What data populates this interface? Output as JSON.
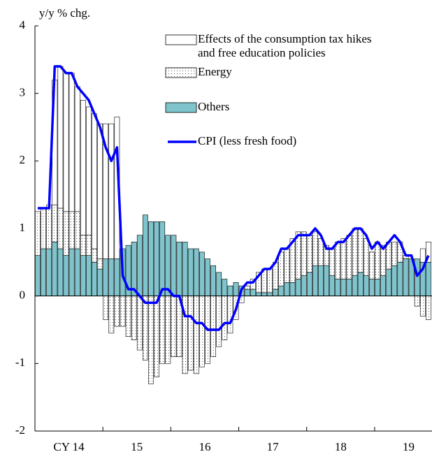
{
  "chart_data": {
    "type": "stacked-bar-line",
    "y_label": "y/y % chg.",
    "categories": [
      null,
      null,
      null,
      null,
      null,
      "CY 14",
      null,
      null,
      null,
      null,
      null,
      null,
      null,
      null,
      null,
      null,
      null,
      "15",
      null,
      null,
      null,
      null,
      null,
      null,
      null,
      null,
      null,
      null,
      null,
      "16",
      null,
      null,
      null,
      null,
      null,
      null,
      null,
      null,
      null,
      null,
      null,
      "17",
      null,
      null,
      null,
      null,
      null,
      null,
      null,
      null,
      null,
      null,
      null,
      "18",
      null,
      null,
      null,
      null,
      null,
      null,
      null,
      null,
      null,
      null,
      null,
      "19",
      null,
      null,
      null,
      null
    ],
    "series": [
      {
        "name": "Others",
        "kind": "bar",
        "color": "#7fc4cc",
        "values": [
          0.6,
          0.7,
          0.7,
          0.8,
          0.7,
          0.6,
          0.7,
          0.7,
          0.6,
          0.6,
          0.5,
          0.4,
          0.55,
          0.55,
          0.55,
          0.7,
          0.75,
          0.8,
          0.9,
          1.2,
          1.1,
          1.1,
          1.1,
          0.9,
          0.9,
          0.8,
          0.8,
          0.7,
          0.7,
          0.65,
          0.55,
          0.45,
          0.35,
          0.25,
          0.15,
          0.2,
          0.15,
          0.1,
          0.1,
          0.05,
          0.05,
          0.05,
          0.1,
          0.15,
          0.2,
          0.2,
          0.25,
          0.3,
          0.35,
          0.45,
          0.45,
          0.45,
          0.3,
          0.25,
          0.25,
          0.25,
          0.3,
          0.35,
          0.3,
          0.25,
          0.25,
          0.3,
          0.4,
          0.45,
          0.5,
          0.55,
          0.55,
          0.55,
          0.5,
          0.5
        ]
      },
      {
        "name": "Energy",
        "kind": "bar",
        "color": "#ffffff",
        "pattern": "dots",
        "values": [
          0.65,
          0.6,
          0.65,
          0.55,
          0.6,
          0.65,
          0.55,
          0.55,
          0.3,
          0.3,
          0.2,
          0.15,
          -0.35,
          -0.55,
          -0.45,
          -0.45,
          -0.6,
          -0.65,
          -0.8,
          -0.95,
          -1.3,
          -1.2,
          -1.0,
          -1.0,
          -0.9,
          -0.9,
          -1.15,
          -1.1,
          -1.15,
          -1.05,
          -1.0,
          -0.9,
          -0.75,
          -0.65,
          -0.55,
          -0.35,
          -0.1,
          0.05,
          0.15,
          0.3,
          0.35,
          0.35,
          0.4,
          0.5,
          0.5,
          0.65,
          0.7,
          0.65,
          0.55,
          0.5,
          0.4,
          0.3,
          0.4,
          0.55,
          0.6,
          0.65,
          0.7,
          0.65,
          0.55,
          0.4,
          0.55,
          0.45,
          0.4,
          0.35,
          0.3,
          0.05,
          0.0,
          -0.15,
          -0.3,
          -0.35
        ]
      },
      {
        "name": "Effects of the consumption tax hikes\nand free education policies",
        "kind": "bar",
        "color": "#ffffff",
        "values": [
          0,
          0,
          0,
          1.85,
          2.1,
          2.05,
          2.05,
          1.85,
          2.0,
          1.9,
          2.0,
          2.0,
          2.0,
          2.0,
          2.1,
          0,
          0,
          0,
          0,
          0,
          0,
          0,
          0,
          0,
          0,
          0,
          0,
          0,
          0,
          0,
          0,
          0,
          0,
          0,
          0,
          0,
          0,
          0,
          0,
          0,
          0,
          0,
          0,
          0,
          0,
          0,
          0,
          0,
          0,
          0,
          0,
          0,
          0,
          0,
          0,
          0,
          0,
          0,
          0,
          0,
          0,
          0,
          0,
          0,
          0,
          0,
          0,
          0,
          0.2,
          0.3
        ]
      },
      {
        "name": "CPI (less fresh food)",
        "kind": "line",
        "color": "#0000ff",
        "values": [
          1.3,
          1.3,
          1.3,
          3.4,
          3.4,
          3.3,
          3.3,
          3.1,
          3.0,
          2.9,
          2.7,
          2.5,
          2.2,
          2.0,
          2.2,
          0.3,
          0.1,
          0.1,
          0.0,
          -0.1,
          -0.1,
          -0.1,
          0.1,
          0.1,
          0.0,
          0.0,
          -0.3,
          -0.3,
          -0.4,
          -0.4,
          -0.5,
          -0.5,
          -0.5,
          -0.4,
          -0.4,
          -0.2,
          0.1,
          0.2,
          0.2,
          0.3,
          0.4,
          0.4,
          0.5,
          0.7,
          0.7,
          0.8,
          0.9,
          0.9,
          0.9,
          1.0,
          0.9,
          0.7,
          0.7,
          0.8,
          0.8,
          0.9,
          1.0,
          1.0,
          0.9,
          0.7,
          0.8,
          0.7,
          0.8,
          0.9,
          0.8,
          0.6,
          0.6,
          0.3,
          0.4,
          0.6
        ]
      }
    ],
    "ylim": [
      -2,
      4
    ],
    "yticks": [
      -2,
      -1,
      0,
      1,
      2,
      3,
      4
    ]
  }
}
